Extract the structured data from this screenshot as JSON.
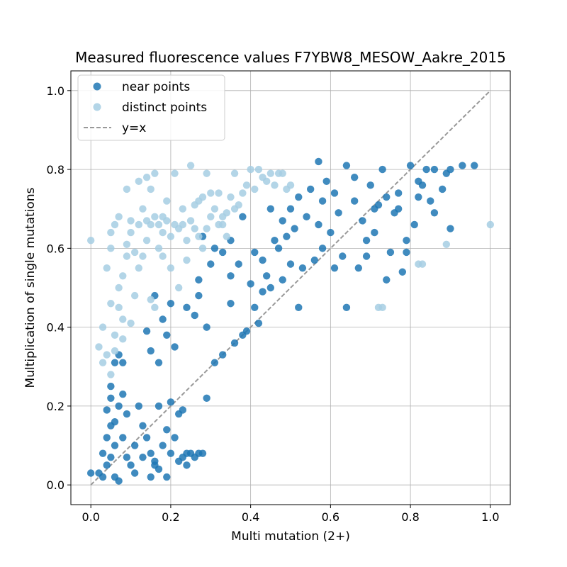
{
  "chart_data": {
    "type": "scatter",
    "title": "Measured fluorescence values F7YBW8_MESOW_Aakre_2015",
    "xlabel": "Multi mutation (2+)",
    "ylabel": "Multiplication of single mutations",
    "xlim": [
      -0.05,
      1.05
    ],
    "ylim": [
      -0.05,
      1.05
    ],
    "xticks": [
      0.0,
      0.2,
      0.4,
      0.6,
      0.8,
      1.0
    ],
    "yticks": [
      0.0,
      0.2,
      0.4,
      0.6,
      0.8,
      1.0
    ],
    "xtick_labels": [
      "0.0",
      "0.2",
      "0.4",
      "0.6",
      "0.8",
      "1.0"
    ],
    "ytick_labels": [
      "0.0",
      "0.2",
      "0.4",
      "0.6",
      "0.8",
      "1.0"
    ],
    "grid": true,
    "legend_position": "top-left",
    "colors": {
      "near": "#1f77b4",
      "distinct": "#a6cee3",
      "identity": "#999999"
    },
    "reference_line": {
      "name": "y=x",
      "style": "dashed",
      "from": [
        0,
        0
      ],
      "to": [
        1,
        1
      ]
    },
    "series": [
      {
        "name": "near points",
        "color": "#1f77b4",
        "points": [
          [
            0.06,
            0.1
          ],
          [
            0.05,
            0.15
          ],
          [
            0.04,
            0.05
          ],
          [
            0.07,
            0.2
          ],
          [
            0.03,
            0.02
          ],
          [
            0.08,
            0.12
          ],
          [
            0.05,
            0.22
          ],
          [
            0.06,
            0.02
          ],
          [
            0.09,
            0.18
          ],
          [
            0.04,
            0.12
          ],
          [
            0.03,
            0.08
          ],
          [
            0.1,
            0.05
          ],
          [
            0.07,
            0.01
          ],
          [
            0.05,
            0.25
          ],
          [
            0.04,
            0.19
          ],
          [
            0.08,
            0.23
          ],
          [
            0.06,
            0.16
          ],
          [
            0.11,
            0.1
          ],
          [
            0.12,
            0.2
          ],
          [
            0.13,
            0.15
          ],
          [
            0.02,
            0.03
          ],
          [
            0.0,
            0.03
          ],
          [
            0.05,
            0.07
          ],
          [
            0.09,
            0.07
          ],
          [
            0.14,
            0.12
          ],
          [
            0.15,
            0.08
          ],
          [
            0.16,
            0.05
          ],
          [
            0.18,
            0.1
          ],
          [
            0.17,
            0.2
          ],
          [
            0.2,
            0.21
          ],
          [
            0.22,
            0.18
          ],
          [
            0.23,
            0.19
          ],
          [
            0.19,
            0.14
          ],
          [
            0.21,
            0.12
          ],
          [
            0.29,
            0.22
          ],
          [
            0.2,
            0.08
          ],
          [
            0.23,
            0.07
          ],
          [
            0.24,
            0.08
          ],
          [
            0.25,
            0.08
          ],
          [
            0.26,
            0.07
          ],
          [
            0.27,
            0.08
          ],
          [
            0.28,
            0.08
          ],
          [
            0.22,
            0.06
          ],
          [
            0.24,
            0.05
          ],
          [
            0.16,
            0.06
          ],
          [
            0.15,
            0.02
          ],
          [
            0.13,
            0.07
          ],
          [
            0.17,
            0.04
          ],
          [
            0.19,
            0.02
          ],
          [
            0.11,
            0.03
          ],
          [
            0.06,
            0.31
          ],
          [
            0.07,
            0.33
          ],
          [
            0.08,
            0.31
          ],
          [
            0.15,
            0.34
          ],
          [
            0.17,
            0.31
          ],
          [
            0.19,
            0.38
          ],
          [
            0.21,
            0.35
          ],
          [
            0.18,
            0.42
          ],
          [
            0.2,
            0.46
          ],
          [
            0.16,
            0.48
          ],
          [
            0.14,
            0.39
          ],
          [
            0.24,
            0.45
          ],
          [
            0.26,
            0.43
          ],
          [
            0.27,
            0.52
          ],
          [
            0.27,
            0.48
          ],
          [
            0.29,
            0.4
          ],
          [
            0.28,
            0.63
          ],
          [
            0.3,
            0.56
          ],
          [
            0.31,
            0.6
          ],
          [
            0.33,
            0.59
          ],
          [
            0.35,
            0.53
          ],
          [
            0.35,
            0.46
          ],
          [
            0.35,
            0.62
          ],
          [
            0.37,
            0.56
          ],
          [
            0.38,
            0.68
          ],
          [
            0.39,
            0.39
          ],
          [
            0.4,
            0.51
          ],
          [
            0.41,
            0.45
          ],
          [
            0.41,
            0.59
          ],
          [
            0.42,
            0.41
          ],
          [
            0.43,
            0.57
          ],
          [
            0.44,
            0.53
          ],
          [
            0.45,
            0.7
          ],
          [
            0.46,
            0.62
          ],
          [
            0.47,
            0.6
          ],
          [
            0.48,
            0.52
          ],
          [
            0.48,
            0.67
          ],
          [
            0.49,
            0.63
          ],
          [
            0.5,
            0.56
          ],
          [
            0.5,
            0.7
          ],
          [
            0.51,
            0.65
          ],
          [
            0.52,
            0.73
          ],
          [
            0.53,
            0.55
          ],
          [
            0.54,
            0.68
          ],
          [
            0.55,
            0.75
          ],
          [
            0.56,
            0.57
          ],
          [
            0.57,
            0.66
          ],
          [
            0.58,
            0.72
          ],
          [
            0.58,
            0.6
          ],
          [
            0.59,
            0.77
          ],
          [
            0.6,
            0.64
          ],
          [
            0.61,
            0.74
          ],
          [
            0.62,
            0.69
          ],
          [
            0.63,
            0.58
          ],
          [
            0.64,
            0.45
          ],
          [
            0.64,
            0.81
          ],
          [
            0.66,
            0.72
          ],
          [
            0.67,
            0.55
          ],
          [
            0.68,
            0.67
          ],
          [
            0.69,
            0.62
          ],
          [
            0.7,
            0.76
          ],
          [
            0.71,
            0.64
          ],
          [
            0.72,
            0.71
          ],
          [
            0.73,
            0.8
          ],
          [
            0.74,
            0.52
          ],
          [
            0.75,
            0.59
          ],
          [
            0.76,
            0.69
          ],
          [
            0.77,
            0.74
          ],
          [
            0.78,
            0.54
          ],
          [
            0.79,
            0.62
          ],
          [
            0.8,
            0.81
          ],
          [
            0.81,
            0.66
          ],
          [
            0.82,
            0.73
          ],
          [
            0.83,
            0.76
          ],
          [
            0.84,
            0.8
          ],
          [
            0.85,
            0.72
          ],
          [
            0.86,
            0.69
          ],
          [
            0.88,
            0.75
          ],
          [
            0.89,
            0.79
          ],
          [
            0.9,
            0.8
          ],
          [
            0.9,
            0.65
          ],
          [
            0.93,
            0.81
          ],
          [
            0.96,
            0.81
          ],
          [
            0.57,
            0.82
          ],
          [
            0.61,
            0.55
          ],
          [
            0.52,
            0.45
          ],
          [
            0.45,
            0.5
          ],
          [
            0.43,
            0.49
          ],
          [
            0.38,
            0.38
          ],
          [
            0.36,
            0.36
          ],
          [
            0.33,
            0.33
          ],
          [
            0.31,
            0.31
          ],
          [
            0.66,
            0.78
          ],
          [
            0.69,
            0.58
          ],
          [
            0.71,
            0.7
          ],
          [
            0.77,
            0.7
          ],
          [
            0.79,
            0.59
          ],
          [
            0.82,
            0.77
          ],
          [
            0.86,
            0.8
          ],
          [
            0.74,
            0.73
          ]
        ]
      },
      {
        "name": "distinct points",
        "color": "#a6cee3",
        "points": [
          [
            0.0,
            0.62
          ],
          [
            0.05,
            0.6
          ],
          [
            0.06,
            0.66
          ],
          [
            0.04,
            0.55
          ],
          [
            0.07,
            0.5
          ],
          [
            0.05,
            0.46
          ],
          [
            0.03,
            0.4
          ],
          [
            0.08,
            0.42
          ],
          [
            0.06,
            0.38
          ],
          [
            0.09,
            0.58
          ],
          [
            0.1,
            0.64
          ],
          [
            0.11,
            0.48
          ],
          [
            0.12,
            0.55
          ],
          [
            0.13,
            0.7
          ],
          [
            0.14,
            0.62
          ],
          [
            0.15,
            0.75
          ],
          [
            0.16,
            0.45
          ],
          [
            0.17,
            0.6
          ],
          [
            0.18,
            0.68
          ],
          [
            0.19,
            0.72
          ],
          [
            0.2,
            0.55
          ],
          [
            0.21,
            0.66
          ],
          [
            0.22,
            0.5
          ],
          [
            0.23,
            0.7
          ],
          [
            0.24,
            0.62
          ],
          [
            0.25,
            0.81
          ],
          [
            0.26,
            0.65
          ],
          [
            0.27,
            0.72
          ],
          [
            0.28,
            0.6
          ],
          [
            0.29,
            0.79
          ],
          [
            0.3,
            0.68
          ],
          [
            0.31,
            0.7
          ],
          [
            0.32,
            0.74
          ],
          [
            0.33,
            0.68
          ],
          [
            0.34,
            0.69
          ],
          [
            0.35,
            0.73
          ],
          [
            0.36,
            0.79
          ],
          [
            0.37,
            0.71
          ],
          [
            0.38,
            0.74
          ],
          [
            0.39,
            0.76
          ],
          [
            0.4,
            0.8
          ],
          [
            0.41,
            0.75
          ],
          [
            0.42,
            0.8
          ],
          [
            0.43,
            0.78
          ],
          [
            0.44,
            0.77
          ],
          [
            0.45,
            0.79
          ],
          [
            0.46,
            0.76
          ],
          [
            0.47,
            0.79
          ],
          [
            0.48,
            0.79
          ],
          [
            0.49,
            0.75
          ],
          [
            0.5,
            0.76
          ],
          [
            0.16,
            0.79
          ],
          [
            0.14,
            0.78
          ],
          [
            0.21,
            0.79
          ],
          [
            0.09,
            0.75
          ],
          [
            0.12,
            0.77
          ],
          [
            0.04,
            0.33
          ],
          [
            0.06,
            0.34
          ],
          [
            0.02,
            0.35
          ],
          [
            0.05,
            0.28
          ],
          [
            0.03,
            0.31
          ],
          [
            0.1,
            0.41
          ],
          [
            0.08,
            0.37
          ],
          [
            0.15,
            0.47
          ],
          [
            0.18,
            0.58
          ],
          [
            0.24,
            0.57
          ],
          [
            0.27,
            0.63
          ],
          [
            0.29,
            0.65
          ],
          [
            0.33,
            0.66
          ],
          [
            0.36,
            0.7
          ],
          [
            0.72,
            0.45
          ],
          [
            0.73,
            0.45
          ],
          [
            0.82,
            0.56
          ],
          [
            0.83,
            0.56
          ],
          [
            0.89,
            0.61
          ],
          [
            1.0,
            0.66
          ],
          [
            0.07,
            0.45
          ],
          [
            0.08,
            0.53
          ],
          [
            0.05,
            0.64
          ],
          [
            0.07,
            0.68
          ],
          [
            0.1,
            0.67
          ],
          [
            0.09,
            0.61
          ],
          [
            0.11,
            0.59
          ],
          [
            0.12,
            0.66
          ],
          [
            0.13,
            0.58
          ],
          [
            0.14,
            0.67
          ],
          [
            0.15,
            0.66
          ],
          [
            0.16,
            0.68
          ],
          [
            0.17,
            0.66
          ],
          [
            0.18,
            0.64
          ],
          [
            0.19,
            0.67
          ],
          [
            0.2,
            0.63
          ],
          [
            0.22,
            0.65
          ],
          [
            0.23,
            0.66
          ],
          [
            0.25,
            0.67
          ],
          [
            0.26,
            0.71
          ],
          [
            0.28,
            0.73
          ],
          [
            0.3,
            0.74
          ],
          [
            0.32,
            0.66
          ],
          [
            0.34,
            0.63
          ]
        ]
      }
    ]
  }
}
